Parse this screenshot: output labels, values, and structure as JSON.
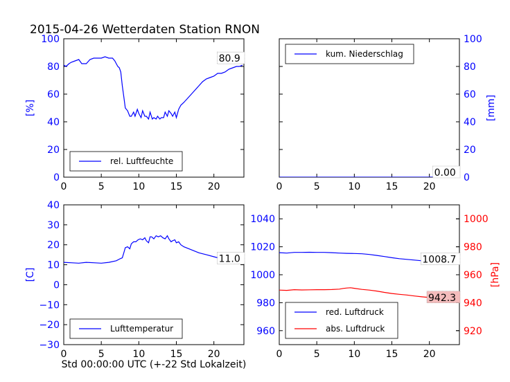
{
  "page": {
    "title": "2015-04-26 Wetterdaten Station RNON",
    "xlabel": "Std 00:00:00 UTC (+-22 Std Lokalzeit)"
  },
  "colors": {
    "blue": "#0000ff",
    "red": "#ff0000",
    "annotation_bg": "#ffffff",
    "annotation_bg_red": "#f4bcbc"
  },
  "chart_data": [
    {
      "type": "line",
      "xlim": [
        0,
        24
      ],
      "ylim": [
        0,
        100
      ],
      "x_ticks": [
        "0",
        "5",
        "10",
        "15",
        "20"
      ],
      "y_ticks": [
        "0",
        "20",
        "40",
        "60",
        "80",
        "100"
      ],
      "ylabel": "[%]",
      "legend": "lower-left",
      "annotation": "80.9",
      "series": [
        {
          "name": "rel. Luftfeuchte",
          "color": "#0000ff",
          "x": [
            0,
            0.3,
            0.7,
            1,
            1.5,
            2,
            2.4,
            2.7,
            3,
            3.5,
            4,
            4.5,
            5,
            5.5,
            6,
            6.5,
            6.8,
            7,
            7.2,
            7.4,
            7.6,
            7.8,
            8,
            8.2,
            8.5,
            8.8,
            9,
            9.3,
            9.5,
            9.8,
            10,
            10.3,
            10.5,
            10.8,
            11,
            11.3,
            11.5,
            11.8,
            12,
            12.3,
            12.5,
            12.8,
            13,
            13.3,
            13.5,
            13.8,
            14,
            14.3,
            14.5,
            14.8,
            15,
            15.3,
            15.6,
            16,
            16.5,
            17,
            17.5,
            18,
            18.5,
            19,
            19.5,
            20,
            20.5,
            21,
            21.5,
            22,
            22.5,
            23,
            23.4,
            23.8
          ],
          "y": [
            81,
            80,
            82,
            83,
            84,
            85,
            82,
            82,
            82,
            85,
            86,
            86,
            86,
            87,
            86,
            86,
            84,
            82,
            80,
            79,
            76,
            66,
            58,
            50,
            48,
            44,
            44,
            47,
            44,
            49,
            46,
            43,
            48,
            44,
            44,
            42,
            47,
            42,
            43,
            42,
            44,
            42,
            43,
            43,
            47,
            44,
            48,
            46,
            44,
            47,
            43,
            49,
            52,
            54,
            57,
            60,
            63,
            66,
            69,
            71,
            72,
            73,
            75,
            75,
            76,
            78,
            79,
            80,
            80,
            80.9
          ]
        }
      ]
    },
    {
      "type": "line",
      "xlim": [
        0,
        24
      ],
      "ylim": [
        0,
        100
      ],
      "x_ticks": [
        "0",
        "5",
        "10",
        "15",
        "20"
      ],
      "y_ticks": [
        "0",
        "20",
        "40",
        "60",
        "80",
        "100"
      ],
      "ylabel": "[mm]",
      "legend": "upper-left",
      "annotation": "0.00",
      "series": [
        {
          "name": "kum. Niederschlag",
          "color": "#0000ff",
          "x": [
            0,
            24
          ],
          "y": [
            0,
            0
          ]
        }
      ]
    },
    {
      "type": "line",
      "xlim": [
        0,
        24
      ],
      "ylim": [
        -30,
        40
      ],
      "x_ticks": [
        "0",
        "5",
        "10",
        "15",
        "20"
      ],
      "y_ticks": [
        "−30",
        "−20",
        "−10",
        "0",
        "10",
        "20",
        "30",
        "40"
      ],
      "ylabel": "[C]",
      "legend": "lower-left",
      "annotation": "11.0",
      "series": [
        {
          "name": "Lufttemperatur",
          "color": "#0000ff",
          "x": [
            0,
            1,
            2,
            3,
            4,
            5,
            6,
            7,
            7.5,
            7.8,
            8,
            8.2,
            8.5,
            8.8,
            9,
            9.3,
            9.6,
            9.9,
            10.2,
            10.5,
            10.8,
            11,
            11.3,
            11.5,
            11.7,
            12,
            12.3,
            12.6,
            12.9,
            13.2,
            13.5,
            13.8,
            14,
            14.3,
            14.5,
            14.8,
            15,
            15.3,
            15.6,
            16,
            17,
            18,
            19,
            20,
            21,
            22,
            23,
            23.8
          ],
          "y": [
            11.2,
            11,
            10.8,
            11.2,
            11,
            10.8,
            11.2,
            12,
            13,
            13.5,
            16,
            18.5,
            19,
            18,
            20.5,
            21.5,
            21.5,
            22.5,
            23,
            22.5,
            23.5,
            22,
            21,
            24,
            24,
            23,
            24.5,
            24,
            24.5,
            23.5,
            23,
            24.5,
            23,
            21.5,
            22,
            22.5,
            21,
            21.5,
            20,
            19,
            17.5,
            16,
            15,
            14,
            13,
            12,
            11.5,
            11
          ]
        }
      ]
    },
    {
      "type": "line",
      "xlim": [
        0,
        24
      ],
      "ylim": [
        950,
        1050
      ],
      "ylim_right": [
        910,
        1010
      ],
      "x_ticks": [
        "0",
        "5",
        "10",
        "15",
        "20"
      ],
      "y_ticks": [
        "960",
        "980",
        "1000",
        "1020",
        "1040"
      ],
      "y_ticks_right": [
        "920",
        "940",
        "960",
        "980",
        "1000"
      ],
      "ylabel_right": "[hPa]",
      "legend": "lower-left",
      "annotations": [
        "1008.7",
        "942.3"
      ],
      "series": [
        {
          "name": "red. Luftdruck",
          "color": "#0000ff",
          "x": [
            0,
            1,
            2,
            3,
            4,
            5,
            6,
            7,
            8,
            9,
            10,
            11,
            12,
            13,
            14,
            15,
            16,
            17,
            18,
            19,
            20,
            21,
            22,
            23,
            24
          ],
          "y": [
            1015.8,
            1015.5,
            1016,
            1016,
            1016.1,
            1016,
            1016,
            1015.8,
            1015.5,
            1015.3,
            1015.2,
            1015,
            1014.5,
            1013.8,
            1013,
            1012.2,
            1011.5,
            1011,
            1010.5,
            1010,
            1009.7,
            1009.4,
            1009.2,
            1009,
            1008.7
          ]
        },
        {
          "name": "abs. Luftdruck",
          "color": "#ff0000",
          "axis": "right",
          "x": [
            0,
            1,
            2,
            3,
            4,
            5,
            6,
            7,
            8,
            8.5,
            9,
            9.5,
            10,
            11,
            12,
            13,
            14,
            15,
            16,
            17,
            18,
            19,
            20,
            21,
            22,
            23,
            24
          ],
          "y": [
            949,
            948.8,
            949.3,
            949.1,
            949.2,
            949.3,
            949.3,
            949.4,
            949.7,
            950.2,
            950.5,
            950.7,
            950.3,
            949.5,
            949,
            948.3,
            947.4,
            946.6,
            946,
            945.5,
            944.8,
            944.2,
            943.7,
            943.2,
            942.8,
            942.5,
            942.3
          ]
        }
      ]
    }
  ]
}
